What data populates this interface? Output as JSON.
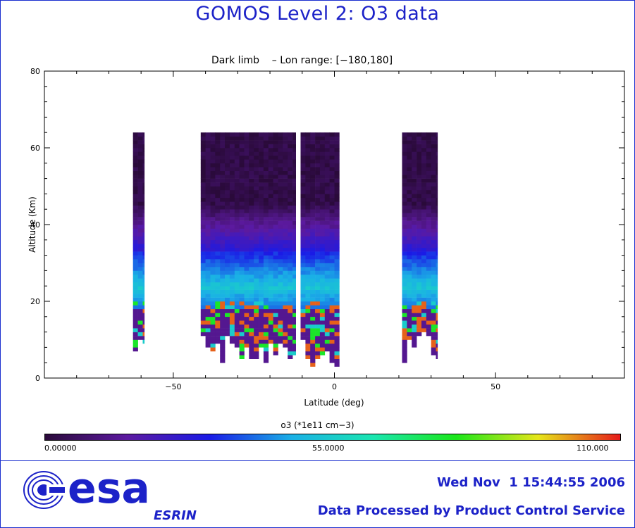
{
  "header": {
    "title": "GOMOS Level 2: O3 data"
  },
  "chart_data": {
    "type": "heatmap",
    "subtitle": "Dark limb    – Lon range: [−180,180]",
    "xlabel": "Latitude (deg)",
    "ylabel": "Altitude (Km)",
    "xlim": [
      -90,
      90
    ],
    "ylim": [
      0,
      80
    ],
    "x_ticks": [
      -50,
      0,
      50
    ],
    "y_ticks": [
      0,
      20,
      40,
      60,
      80
    ],
    "x_tick_labels": [
      "−50",
      "0",
      "50"
    ],
    "y_tick_labels": [
      "0",
      "20",
      "40",
      "60",
      "80"
    ],
    "altitude_top": 64,
    "bands": [
      {
        "lat_range": [
          -62.5,
          -59
        ],
        "altitude_bottom": 7
      },
      {
        "lat_range": [
          -41.5,
          -12
        ],
        "altitude_bottom": 4
      },
      {
        "lat_range": [
          -10.5,
          1.5
        ],
        "altitude_bottom": 2
      },
      {
        "lat_range": [
          21,
          32
        ],
        "altitude_bottom": 4
      }
    ],
    "colorbar": {
      "label": "o3 (*1e11 cm−3)",
      "min": 0,
      "max": 110,
      "tick_labels": [
        "0.00000",
        "55.0000",
        "110.000"
      ],
      "stops": [
        "#2a0a3a",
        "#5c1aa0",
        "#1a1ae6",
        "#1ab0e6",
        "#1ae6b0",
        "#1ae61a",
        "#e6e61a",
        "#e61a1a"
      ]
    }
  },
  "footer": {
    "logo_text": "esa",
    "logo_subtext": "ESRIN",
    "date": "Wed Nov  1 15:44:55 2006",
    "processed": "Data Processed by Product Control Service"
  }
}
